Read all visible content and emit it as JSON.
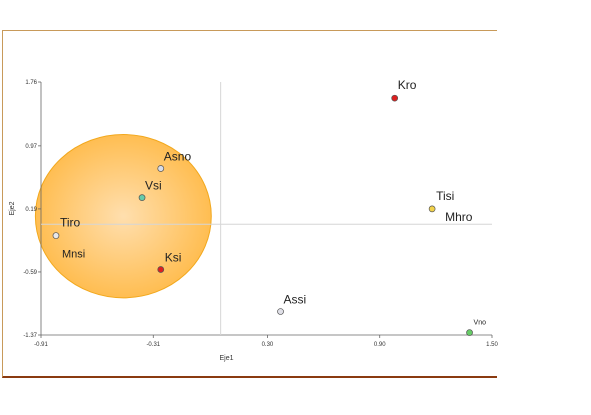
{
  "chart_data": {
    "type": "scatter",
    "title": "",
    "xlabel": "Eje1",
    "ylabel": "Eje2",
    "xlim": [
      -0.91,
      1.5
    ],
    "ylim": [
      -1.37,
      1.76
    ],
    "xticks": [
      {
        "value": -0.91,
        "label": "-0.91"
      },
      {
        "value": -0.31,
        "label": "-0.31"
      },
      {
        "value": 0.3,
        "label": "0.30"
      },
      {
        "value": 0.9,
        "label": "0.90"
      },
      {
        "value": 1.5,
        "label": "1.50"
      }
    ],
    "yticks": [
      {
        "value": 1.76,
        "label": "1.76"
      },
      {
        "value": 0.97,
        "label": "0.97"
      },
      {
        "value": 0.19,
        "label": "0.19"
      },
      {
        "value": -0.59,
        "label": "-0.59"
      },
      {
        "value": -1.37,
        "label": "-1.37"
      }
    ],
    "reference_lines": {
      "x": 0.05,
      "y": 0.0
    },
    "grid": false,
    "points": [
      {
        "label": "Kro",
        "x": 0.98,
        "y": 1.56,
        "color": "#dd1f1f"
      },
      {
        "label": "Asno",
        "x": -0.27,
        "y": 0.69,
        "color": "#d8dce8"
      },
      {
        "label": "Vsi",
        "x": -0.37,
        "y": 0.33,
        "color": "#66ccaa"
      },
      {
        "label": "Tiro",
        "x": -0.83,
        "y": -0.14,
        "color": "#e8e8ea"
      },
      {
        "label": "Mnsi",
        "x": -0.83,
        "y": -0.14,
        "color": "#e8e8ea"
      },
      {
        "label": "Ksi",
        "x": -0.27,
        "y": -0.56,
        "color": "#dd1f1f"
      },
      {
        "label": "Tisi",
        "x": 1.18,
        "y": 0.19,
        "color": "#f2d24a"
      },
      {
        "label": "Mhro",
        "x": 1.18,
        "y": 0.19,
        "color": "#f2d24a"
      },
      {
        "label": "Assi",
        "x": 0.37,
        "y": -1.08,
        "color": "#e0e0e8"
      },
      {
        "label": "Vno",
        "x": 1.38,
        "y": -1.34,
        "color": "#66cc66"
      }
    ],
    "highlight": {
      "cx": -0.47,
      "cy": 0.1,
      "rx": 0.47,
      "ry": 1.01,
      "fill": "#ffb233",
      "stroke": "#f2a81d"
    }
  }
}
